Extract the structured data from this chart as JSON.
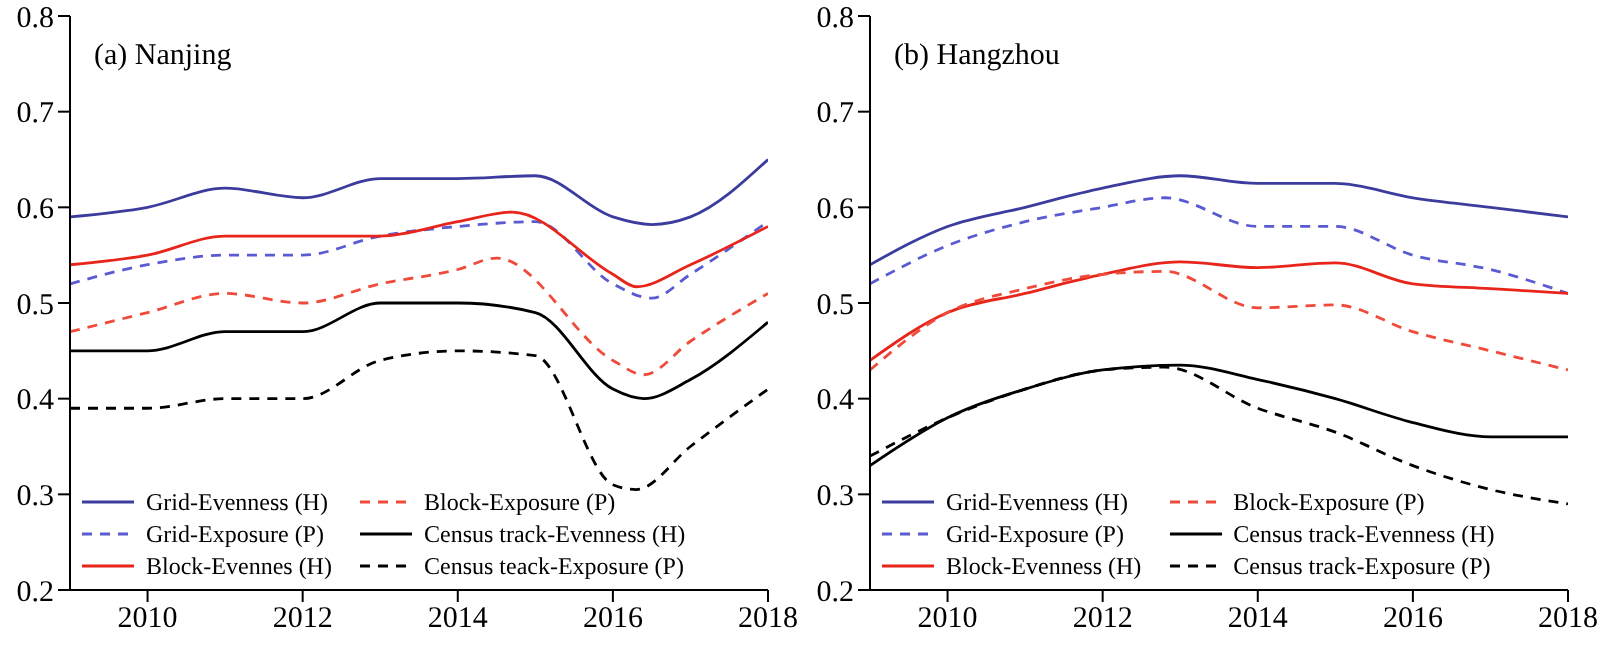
{
  "chart_data": [
    {
      "type": "line",
      "title": "(a) Nanjing",
      "xlim": [
        2009,
        2018
      ],
      "xticks": [
        2010,
        2012,
        2014,
        2016,
        2018
      ],
      "ylim": [
        0.2,
        0.8
      ],
      "yticks": [
        0.2,
        0.3,
        0.4,
        0.5,
        0.6,
        0.7,
        0.8
      ],
      "legend": "bottom left",
      "marker": "none",
      "series": [
        {
          "name": "Grid-Evenness (H)",
          "color": "#3c3c9e",
          "line_style": "solid",
          "x": [
            2009,
            2010,
            2011,
            2012,
            2013,
            2014,
            2015,
            2016,
            2016.5,
            2017,
            2018
          ],
          "values": [
            0.59,
            0.6,
            0.62,
            0.61,
            0.63,
            0.63,
            0.633,
            0.59,
            0.582,
            0.59,
            0.65
          ]
        },
        {
          "name": "Grid-Exposure (P)",
          "color": "#5a5ad2",
          "line_style": "dashed",
          "x": [
            2009,
            2010,
            2011,
            2012,
            2013,
            2014,
            2015,
            2016,
            2016.5,
            2017,
            2018
          ],
          "values": [
            0.52,
            0.54,
            0.55,
            0.55,
            0.57,
            0.58,
            0.585,
            0.52,
            0.505,
            0.53,
            0.585
          ]
        },
        {
          "name": "Block-Evennes (H)",
          "color": "#e8251a",
          "line_style": "solid",
          "x": [
            2009,
            2010,
            2011,
            2012,
            2013,
            2014,
            2014.7,
            2016,
            2016.3,
            2017,
            2018
          ],
          "values": [
            0.54,
            0.55,
            0.57,
            0.57,
            0.57,
            0.585,
            0.595,
            0.53,
            0.517,
            0.54,
            0.58
          ]
        },
        {
          "name": "Block-Exposure (P)",
          "color": "#f04a3a",
          "line_style": "dashed",
          "x": [
            2009,
            2010,
            2011,
            2012,
            2013,
            2014,
            2014.5,
            2016,
            2016.4,
            2017,
            2018
          ],
          "values": [
            0.47,
            0.49,
            0.51,
            0.5,
            0.52,
            0.535,
            0.547,
            0.44,
            0.425,
            0.46,
            0.51
          ]
        },
        {
          "name": "Census track-Evenness (H)",
          "color": "#000000",
          "line_style": "solid",
          "x": [
            2009,
            2010,
            2011,
            2012,
            2013,
            2014,
            2015,
            2016,
            2016.4,
            2017,
            2018
          ],
          "values": [
            0.45,
            0.45,
            0.47,
            0.47,
            0.5,
            0.5,
            0.49,
            0.41,
            0.4,
            0.42,
            0.48
          ]
        },
        {
          "name": "Census teack-Exposure (P)",
          "color": "#000000",
          "line_style": "dashed",
          "x": [
            2009,
            2010,
            2011,
            2012,
            2013,
            2014,
            2015,
            2016,
            2016.3,
            2017,
            2018
          ],
          "values": [
            0.39,
            0.39,
            0.4,
            0.4,
            0.44,
            0.45,
            0.445,
            0.31,
            0.305,
            0.35,
            0.41
          ]
        }
      ]
    },
    {
      "type": "line",
      "title": "(b) Hangzhou",
      "xlim": [
        2009,
        2018
      ],
      "xticks": [
        2010,
        2012,
        2014,
        2016,
        2018
      ],
      "ylim": [
        0.2,
        0.8
      ],
      "yticks": [
        0.2,
        0.3,
        0.4,
        0.5,
        0.6,
        0.7,
        0.8
      ],
      "legend": "bottom left",
      "marker": "none",
      "series": [
        {
          "name": "Grid-Evenness (H)",
          "color": "#3c3c9e",
          "line_style": "solid",
          "x": [
            2009,
            2010,
            2011,
            2012,
            2013,
            2014,
            2015,
            2016,
            2017,
            2018
          ],
          "values": [
            0.54,
            0.58,
            0.6,
            0.62,
            0.633,
            0.625,
            0.625,
            0.61,
            0.6,
            0.59
          ]
        },
        {
          "name": "Grid-Exposure (P)",
          "color": "#5a5ad2",
          "line_style": "dashed",
          "x": [
            2009,
            2010,
            2011,
            2012,
            2012.8,
            2014,
            2015,
            2016,
            2017,
            2018
          ],
          "values": [
            0.52,
            0.56,
            0.585,
            0.6,
            0.61,
            0.58,
            0.58,
            0.55,
            0.535,
            0.51
          ]
        },
        {
          "name": "Block-Evenness (H)",
          "color": "#e8251a",
          "line_style": "solid",
          "x": [
            2009,
            2010,
            2011,
            2012,
            2013,
            2014,
            2015,
            2016,
            2017,
            2018
          ],
          "values": [
            0.44,
            0.49,
            0.51,
            0.53,
            0.543,
            0.537,
            0.542,
            0.52,
            0.515,
            0.51
          ]
        },
        {
          "name": "Block-Exposure (P)",
          "color": "#f04a3a",
          "line_style": "dashed",
          "x": [
            2009,
            2010,
            2011,
            2012,
            2012.8,
            2014,
            2015,
            2016,
            2017,
            2018
          ],
          "values": [
            0.43,
            0.49,
            0.515,
            0.53,
            0.533,
            0.495,
            0.498,
            0.47,
            0.45,
            0.43
          ]
        },
        {
          "name": "Census track-Evenness (H)",
          "color": "#000000",
          "line_style": "solid",
          "x": [
            2009,
            2010,
            2011,
            2012,
            2013,
            2014,
            2015,
            2016,
            2017,
            2018
          ],
          "values": [
            0.33,
            0.38,
            0.41,
            0.43,
            0.435,
            0.42,
            0.4,
            0.375,
            0.36,
            0.36
          ]
        },
        {
          "name": "Census track-Exposure (P)",
          "color": "#000000",
          "line_style": "dashed",
          "x": [
            2009,
            2010,
            2011,
            2012,
            2012.8,
            2014,
            2015,
            2016,
            2017,
            2018
          ],
          "values": [
            0.34,
            0.38,
            0.41,
            0.43,
            0.433,
            0.39,
            0.365,
            0.33,
            0.305,
            0.29
          ]
        }
      ]
    }
  ]
}
